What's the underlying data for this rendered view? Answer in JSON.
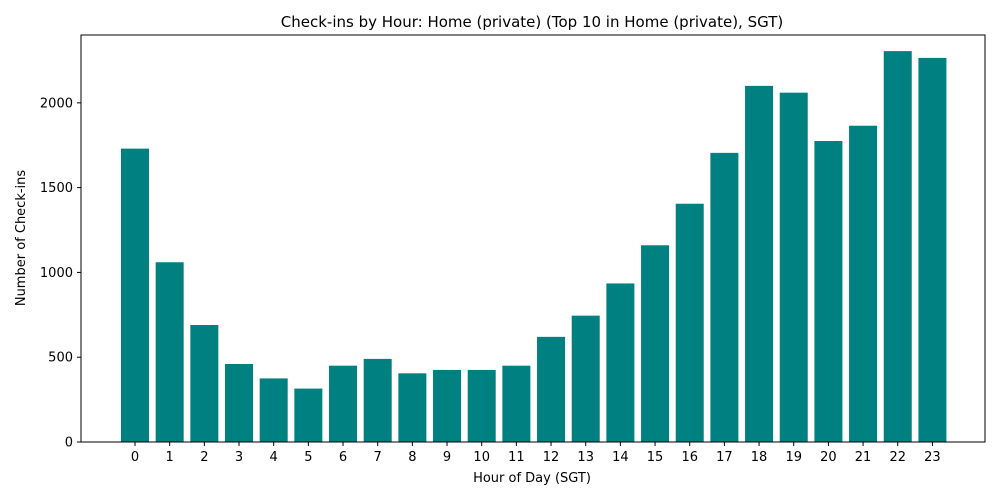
{
  "chart_data": {
    "type": "bar",
    "title": "Check-ins by Hour: Home (private) (Top 10 in Home (private), SGT)",
    "xlabel": "Hour of Day (SGT)",
    "ylabel": "Number of Check-ins",
    "categories": [
      "0",
      "1",
      "2",
      "3",
      "4",
      "5",
      "6",
      "7",
      "8",
      "9",
      "10",
      "11",
      "12",
      "13",
      "14",
      "15",
      "16",
      "17",
      "18",
      "19",
      "20",
      "21",
      "22",
      "23"
    ],
    "values": [
      1730,
      1060,
      690,
      460,
      375,
      315,
      450,
      490,
      405,
      425,
      425,
      450,
      620,
      745,
      935,
      1160,
      1405,
      1705,
      2100,
      2060,
      1775,
      1865,
      2305,
      2265
    ],
    "yticks": [
      0,
      500,
      1000,
      1500,
      2000
    ],
    "ylim": [
      0,
      2400
    ],
    "bar_color": "#008080",
    "grid": false
  }
}
